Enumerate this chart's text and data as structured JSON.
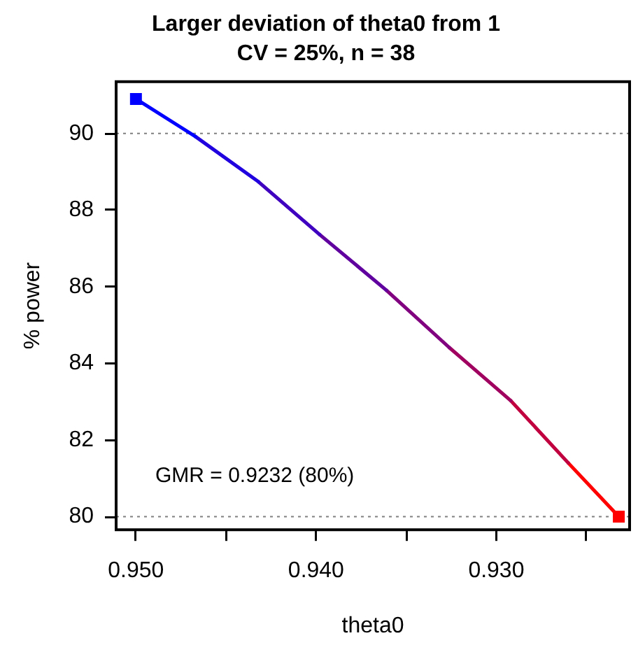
{
  "chart_data": {
    "type": "line",
    "title": "Larger deviation of theta0 from 1",
    "subtitle": "CV = 25%, n = 38",
    "xlabel": "theta0",
    "ylabel": "% power",
    "series": [
      {
        "x": [
          0.95,
          0.9467
        ],
        "values": [
          90.9,
          89.92
        ],
        "color": "#0000ff"
      },
      {
        "x": [
          0.9467,
          0.9432
        ],
        "values": [
          89.92,
          88.74
        ],
        "color": "#2000df"
      },
      {
        "x": [
          0.9432,
          0.9398
        ],
        "values": [
          88.74,
          87.36
        ],
        "color": "#4000bf"
      },
      {
        "x": [
          0.9398,
          0.9361
        ],
        "values": [
          87.36,
          85.91
        ],
        "color": "#60009f"
      },
      {
        "x": [
          0.9361,
          0.9326
        ],
        "values": [
          85.91,
          84.41
        ],
        "color": "#80007f"
      },
      {
        "x": [
          0.9326,
          0.9292
        ],
        "values": [
          84.41,
          83.03
        ],
        "color": "#a0005f"
      },
      {
        "x": [
          0.9292,
          0.926
        ],
        "values": [
          83.03,
          81.4
        ],
        "color": "#c0003f"
      },
      {
        "x": [
          0.926,
          0.9232
        ],
        "values": [
          81.4,
          80
        ],
        "color": "#ff0000"
      },
      {
        "type": "scatter",
        "x": [
          0.95
        ],
        "values": [
          90.9
        ],
        "color": "#0000ff",
        "marker": "square"
      },
      {
        "type": "scatter",
        "x": [
          0.9232
        ],
        "values": [
          80
        ],
        "color": "#ff0000",
        "marker": "square"
      }
    ],
    "xlim": [
      0.9511,
      0.9226
    ],
    "ylim": [
      79.66,
      91.35
    ],
    "xticks": [
      {
        "value": 0.95,
        "label": "0.950"
      },
      {
        "value": 0.945,
        "label": null
      },
      {
        "value": 0.94,
        "label": "0.940"
      },
      {
        "value": 0.935,
        "label": null
      },
      {
        "value": 0.93,
        "label": "0.930"
      },
      {
        "value": 0.925,
        "label": null
      }
    ],
    "yticks": [
      80,
      82,
      84,
      86,
      88,
      90
    ],
    "ref_lines": [
      {
        "axis": "y",
        "value": 90,
        "color": "#808080",
        "line_style": "dotted"
      },
      {
        "axis": "y",
        "value": 80,
        "color": "#808080",
        "line_style": "dotted"
      }
    ],
    "annotations": [
      "GMR = 0.9232 (80%)"
    ],
    "grid": false,
    "legend": false
  }
}
